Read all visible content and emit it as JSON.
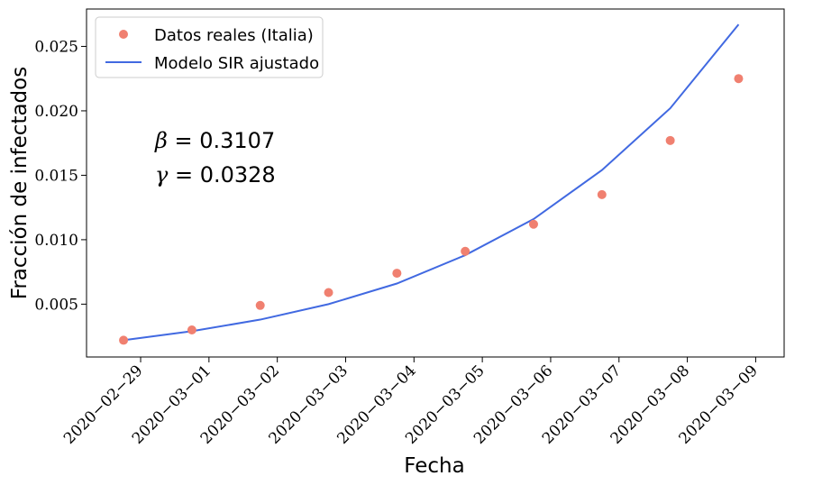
{
  "chart_data": {
    "type": "line",
    "xlabel": "Fecha",
    "ylabel": "Fracción de infectados",
    "x": [
      "2020-02-29",
      "2020-03-01",
      "2020-03-02",
      "2020-03-03",
      "2020-03-04",
      "2020-03-05",
      "2020-03-06",
      "2020-03-07",
      "2020-03-08",
      "2020-03-09"
    ],
    "x_tick_labels": [
      "2020−02−29",
      "2020−03−01",
      "2020−03−02",
      "2020−03−03",
      "2020−03−04",
      "2020−03−05",
      "2020−03−06",
      "2020−03−07",
      "2020−03−08",
      "2020−03−09"
    ],
    "y_ticks": [
      0.005,
      0.01,
      0.015,
      0.02,
      0.025
    ],
    "y_tick_labels": [
      "0.005",
      "0.010",
      "0.015",
      "0.020",
      "0.025"
    ],
    "xlim": [
      "2020-02-28T05:00",
      "2020-03-09T10:00"
    ],
    "ylim": [
      0.0009,
      0.0279
    ],
    "series": [
      {
        "name": "Datos reales (Italia)",
        "kind": "scatter",
        "color": "#f08070",
        "x": [
          "2020-02-28T18:00",
          "2020-02-29T18:00",
          "2020-03-01T18:00",
          "2020-03-02T18:00",
          "2020-03-03T18:00",
          "2020-03-04T18:00",
          "2020-03-05T18:00",
          "2020-03-06T18:00",
          "2020-03-07T18:00",
          "2020-03-08T18:00"
        ],
        "values": [
          0.0022,
          0.003,
          0.0049,
          0.0059,
          0.0074,
          0.0091,
          0.0112,
          0.0135,
          0.0177,
          0.0225
        ]
      },
      {
        "name": "Modelo SIR ajustado",
        "kind": "line",
        "color": "#4169e1",
        "x": [
          "2020-02-28T18:00",
          "2020-02-29T18:00",
          "2020-03-01T18:00",
          "2020-03-02T18:00",
          "2020-03-03T18:00",
          "2020-03-04T18:00",
          "2020-03-05T18:00",
          "2020-03-06T18:00",
          "2020-03-07T18:00",
          "2020-03-08T18:00"
        ],
        "values": [
          0.0022,
          0.0029,
          0.0038,
          0.005,
          0.0066,
          0.0088,
          0.0116,
          0.0154,
          0.0202,
          0.0267
        ]
      }
    ],
    "annotations": [
      {
        "symbol": "β",
        "rest": " = 0.3107"
      },
      {
        "symbol": "γ",
        "rest": " = 0.0328"
      }
    ],
    "legend_position": "top-left",
    "grid": false
  }
}
